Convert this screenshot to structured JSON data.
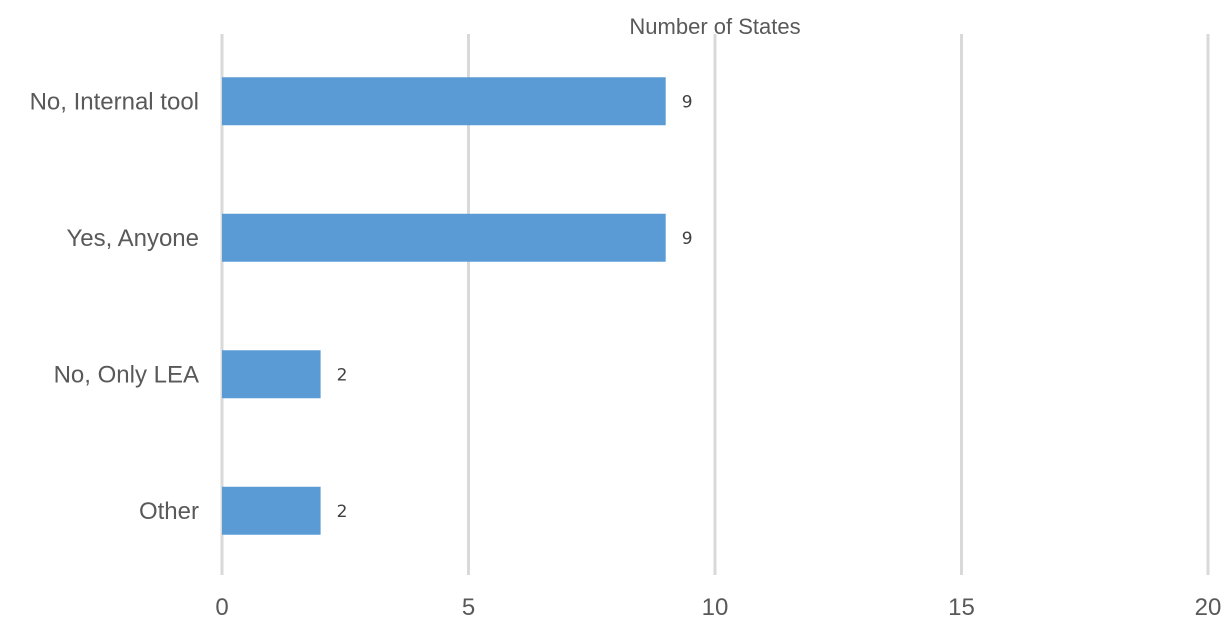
{
  "chart_data": {
    "type": "bar",
    "orientation": "horizontal",
    "title": "",
    "xlabel": "Number of States",
    "ylabel": "",
    "categories": [
      "No, Internal tool",
      "Yes, Anyone",
      "No, Only LEA",
      "Other"
    ],
    "values": [
      9,
      9,
      2,
      2
    ],
    "data_labels": [
      "9",
      "9",
      "2",
      "2"
    ],
    "xlim": [
      0,
      20
    ],
    "xticks": [
      0,
      5,
      10,
      15,
      20
    ],
    "xtick_labels": [
      "0",
      "5",
      "10",
      "15",
      "20"
    ],
    "grid": true,
    "legend": "none",
    "bar_color": "#5b9bd5",
    "grid_color": "#d9d9d9",
    "text_color": "#595959"
  }
}
